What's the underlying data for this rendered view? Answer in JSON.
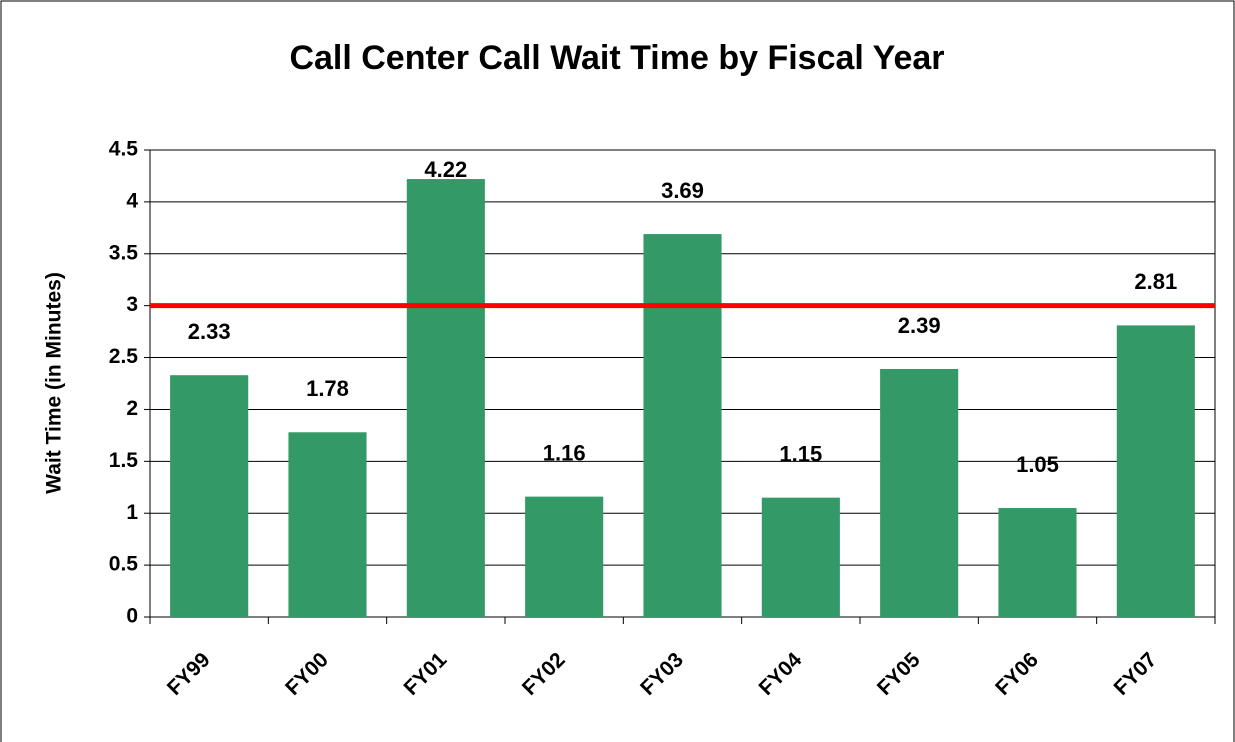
{
  "chart_data": {
    "type": "bar",
    "title": "Call Center Call Wait Time by Fiscal Year",
    "y_label": "Wait Time (in Minutes)",
    "categories": [
      "FY99",
      "FY00",
      "FY01",
      "FY02",
      "FY03",
      "FY04",
      "FY05",
      "FY06",
      "FY07"
    ],
    "values": [
      2.33,
      1.78,
      4.22,
      1.16,
      3.69,
      1.15,
      2.39,
      1.05,
      2.81
    ],
    "color": "#339966",
    "reference_line": 3,
    "reference_color": "#ff0000",
    "ylim": [
      0,
      4.5
    ],
    "yticks": [
      0,
      0.5,
      1,
      1.5,
      2,
      2.5,
      3,
      3.5,
      4,
      4.5
    ],
    "grid": true
  }
}
